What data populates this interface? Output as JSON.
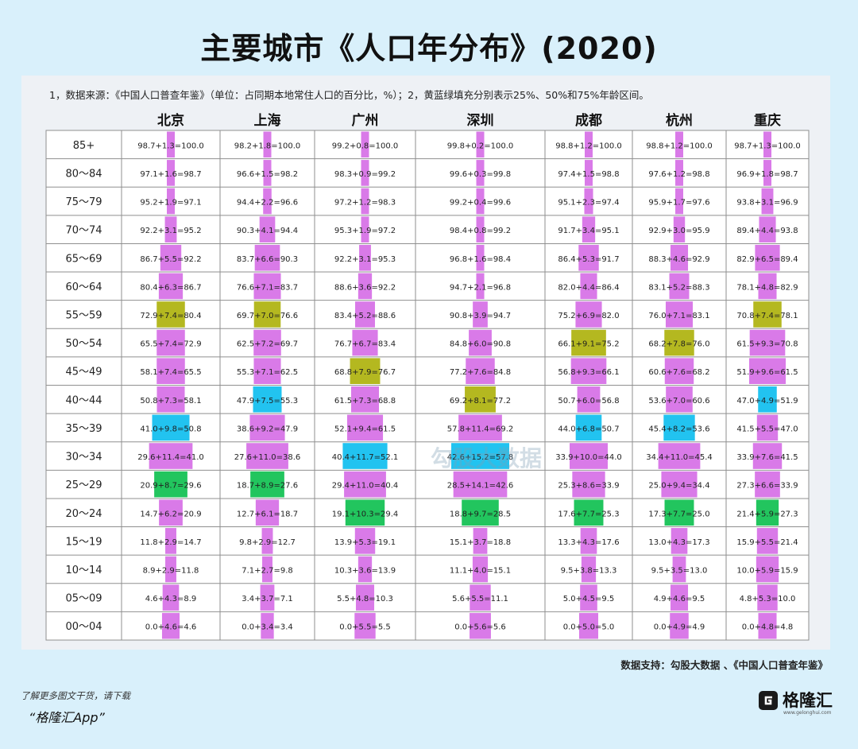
{
  "title": "主要城市《人口年分布》(2020)",
  "note": "1，数据来源：《中国人口普查年鉴》（单位：占同期本地常住人口的百分比，%）；2，黄蓝绿填充分别表示25%、50%和75%年龄区间。",
  "source": "数据支持：勾股大数据 、《中国人口普查年鉴》",
  "promo_line1": "了解更多图文干货，请下载",
  "promo_line2": "“格隆汇App”",
  "logo_text": "格隆汇",
  "logo_url": "www.gelonghui.com",
  "watermark": "勾股大数据",
  "colors": {
    "bar": "#d97ae8",
    "p25": "#22c55e",
    "p50": "#22c3f0",
    "p75": "#b4b820",
    "grid": "#8f8f8f",
    "panel": "#eef1f5",
    "page": "#d9f0fb"
  },
  "chart_data": {
    "type": "table",
    "columns": [
      "北京",
      "上海",
      "广州",
      "深圳",
      "成都",
      "杭州",
      "重庆"
    ],
    "age_groups": [
      "85+",
      "80～84",
      "75～79",
      "70～74",
      "65～69",
      "60～64",
      "55～59",
      "50～54",
      "45～49",
      "40～44",
      "35～39",
      "30～34",
      "25～29",
      "20～24",
      "15～19",
      "10～14",
      "05～09",
      "00～04"
    ],
    "cells": [
      [
        "98.7+1.3=100.0",
        "98.2+1.8=100.0",
        "99.2+0.8=100.0",
        "99.8+0.2=100.0",
        "98.8+1.2=100.0",
        "98.8+1.2=100.0",
        "98.7+1.3=100.0"
      ],
      [
        "97.1+1.6=98.7",
        "96.6+1.5=98.2",
        "98.3+0.9=99.2",
        "99.6+0.3=99.8",
        "97.4+1.5=98.8",
        "97.6+1.2=98.8",
        "96.9+1.8=98.7"
      ],
      [
        "95.2+1.9=97.1",
        "94.4+2.2=96.6",
        "97.2+1.2=98.3",
        "99.2+0.4=99.6",
        "95.1+2.3=97.4",
        "95.9+1.7=97.6",
        "93.8+3.1=96.9"
      ],
      [
        "92.2+3.1=95.2",
        "90.3+4.1=94.4",
        "95.3+1.9=97.2",
        "98.4+0.8=99.2",
        "91.7+3.4=95.1",
        "92.9+3.0=95.9",
        "89.4+4.4=93.8"
      ],
      [
        "86.7+5.5=92.2",
        "83.7+6.6=90.3",
        "92.2+3.1=95.3",
        "96.8+1.6=98.4",
        "86.4+5.3=91.7",
        "88.3+4.6=92.9",
        "82.9+6.5=89.4"
      ],
      [
        "80.4+6.3=86.7",
        "76.6+7.1=83.7",
        "88.6+3.6=92.2",
        "94.7+2.1=96.8",
        "82.0+4.4=86.4",
        "83.1+5.2=88.3",
        "78.1+4.8=82.9"
      ],
      [
        "72.9+7.4=80.4",
        "69.7+7.0=76.6",
        "83.4+5.2=88.6",
        "90.8+3.9=94.7",
        "75.2+6.9=82.0",
        "76.0+7.1=83.1",
        "70.8+7.4=78.1"
      ],
      [
        "65.5+7.4=72.9",
        "62.5+7.2=69.7",
        "76.7+6.7=83.4",
        "84.8+6.0=90.8",
        "66.1+9.1=75.2",
        "68.2+7.8=76.0",
        "61.5+9.3=70.8"
      ],
      [
        "58.1+7.4=65.5",
        "55.3+7.1=62.5",
        "68.8+7.9=76.7",
        "77.2+7.6=84.8",
        "56.8+9.3=66.1",
        "60.6+7.6=68.2",
        "51.9+9.6=61.5"
      ],
      [
        "50.8+7.3=58.1",
        "47.9+7.5=55.3",
        "61.5+7.3=68.8",
        "69.2+8.1=77.2",
        "50.7+6.0=56.8",
        "53.6+7.0=60.6",
        "47.0+4.9=51.9"
      ],
      [
        "41.0+9.8=50.8",
        "38.6+9.2=47.9",
        "52.1+9.4=61.5",
        "57.8+11.4=69.2",
        "44.0+6.8=50.7",
        "45.4+8.2=53.6",
        "41.5+5.5=47.0"
      ],
      [
        "29.6+11.4=41.0",
        "27.6+11.0=38.6",
        "40.4+11.7=52.1",
        "42.6+15.2=57.8",
        "33.9+10.0=44.0",
        "34.4+11.0=45.4",
        "33.9+7.6=41.5"
      ],
      [
        "20.9+8.7=29.6",
        "18.7+8.9=27.6",
        "29.4+11.0=40.4",
        "28.5+14.1=42.6",
        "25.3+8.6=33.9",
        "25.0+9.4=34.4",
        "27.3+6.6=33.9"
      ],
      [
        "14.7+6.2=20.9",
        "12.7+6.1=18.7",
        "19.1+10.3=29.4",
        "18.8+9.7=28.5",
        "17.6+7.7=25.3",
        "17.3+7.7=25.0",
        "21.4+5.9=27.3"
      ],
      [
        "11.8+2.9=14.7",
        "9.8+2.9=12.7",
        "13.9+5.3=19.1",
        "15.1+3.7=18.8",
        "13.3+4.3=17.6",
        "13.0+4.3=17.3",
        "15.9+5.5=21.4"
      ],
      [
        "8.9+2.9=11.8",
        "7.1+2.7=9.8",
        "10.3+3.6=13.9",
        "11.1+4.0=15.1",
        "9.5+3.8=13.3",
        "9.5+3.5=13.0",
        "10.0+5.9=15.9"
      ],
      [
        "4.6+4.3=8.9",
        "3.4+3.7=7.1",
        "5.5+4.8=10.3",
        "5.6+5.5=11.1",
        "5.0+4.5=9.5",
        "4.9+4.6=9.5",
        "4.8+5.3=10.0"
      ],
      [
        "0.0+4.6=4.6",
        "0.0+3.4=3.4",
        "0.0+5.5=5.5",
        "0.0+5.6=5.6",
        "0.0+5.0=5.0",
        "0.0+4.9=4.9",
        "0.0+4.8=4.8"
      ]
    ],
    "highlight": {
      "p75": [
        6,
        6,
        8,
        9,
        7,
        7,
        6
      ],
      "p50": [
        10,
        9,
        11,
        11,
        10,
        10,
        9
      ],
      "p25": [
        12,
        12,
        13,
        13,
        13,
        13,
        13
      ]
    }
  }
}
